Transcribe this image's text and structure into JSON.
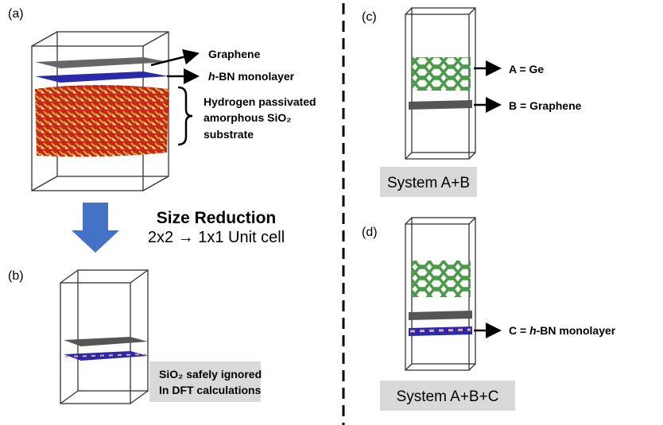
{
  "panel_a": {
    "label": "(a)",
    "graphene": "Graphene",
    "hbn": {
      "em": "h",
      "rest": "-BN monolayer"
    },
    "substrate": [
      "Hydrogen passivated",
      "amorphous SiO₂",
      "substrate"
    ]
  },
  "reduction": {
    "title": "Size Reduction",
    "subtitle": "2x2 → 1x1 Unit cell"
  },
  "panel_b": {
    "label": "(b)",
    "note": [
      "SiO₂ safely ignored",
      "In DFT calculations"
    ]
  },
  "panel_c": {
    "label": "(c)",
    "a": "A = Ge",
    "b": "B = Graphene",
    "caption": "System A+B"
  },
  "panel_d": {
    "label": "(d)",
    "c": {
      "prefix": "C = ",
      "em": "h",
      "rest": "-BN monolayer"
    },
    "caption": "System A+B+C"
  }
}
